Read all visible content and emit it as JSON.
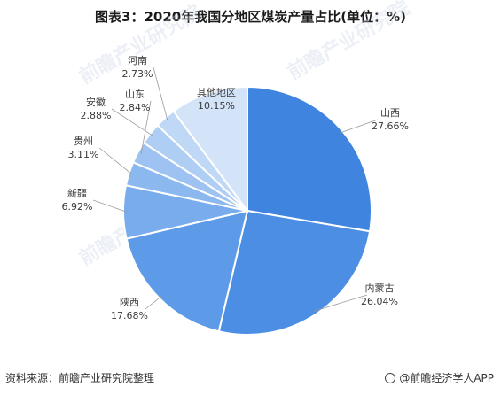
{
  "title": "图表3：2020年我国分地区煤炭产量占比(单位：%)",
  "footer": {
    "source": "资料来源：前瞻产业研究院整理",
    "brand": "@前瞻经济学人APP"
  },
  "watermarks": [
    "前瞻产业研究院",
    "前瞻产业研究院",
    "前瞻产业研究院",
    "前瞻"
  ],
  "chart_data": {
    "type": "pie",
    "unit": "%",
    "slices": [
      {
        "name": "山西",
        "value": 27.66,
        "label": "27.66%",
        "color": "#3f85e0"
      },
      {
        "name": "内蒙古",
        "value": 26.04,
        "label": "26.04%",
        "color": "#4b8ee4"
      },
      {
        "name": "陕西",
        "value": 17.68,
        "label": "17.68%",
        "color": "#5d9ae8"
      },
      {
        "name": "新疆",
        "value": 6.92,
        "label": "6.92%",
        "color": "#79aced"
      },
      {
        "name": "贵州",
        "value": 3.11,
        "label": "3.11%",
        "color": "#8cb8f0"
      },
      {
        "name": "山东",
        "value": 2.84,
        "label": "2.84%",
        "color": "#9ec3f2"
      },
      {
        "name": "安徽",
        "value": 2.88,
        "label": "2.88%",
        "color": "#afcef4"
      },
      {
        "name": "河南",
        "value": 2.73,
        "label": "2.73%",
        "color": "#bfd8f6"
      },
      {
        "name": "其他地区",
        "value": 10.15,
        "label": "10.15%",
        "color": "#d3e3f8"
      }
    ]
  }
}
